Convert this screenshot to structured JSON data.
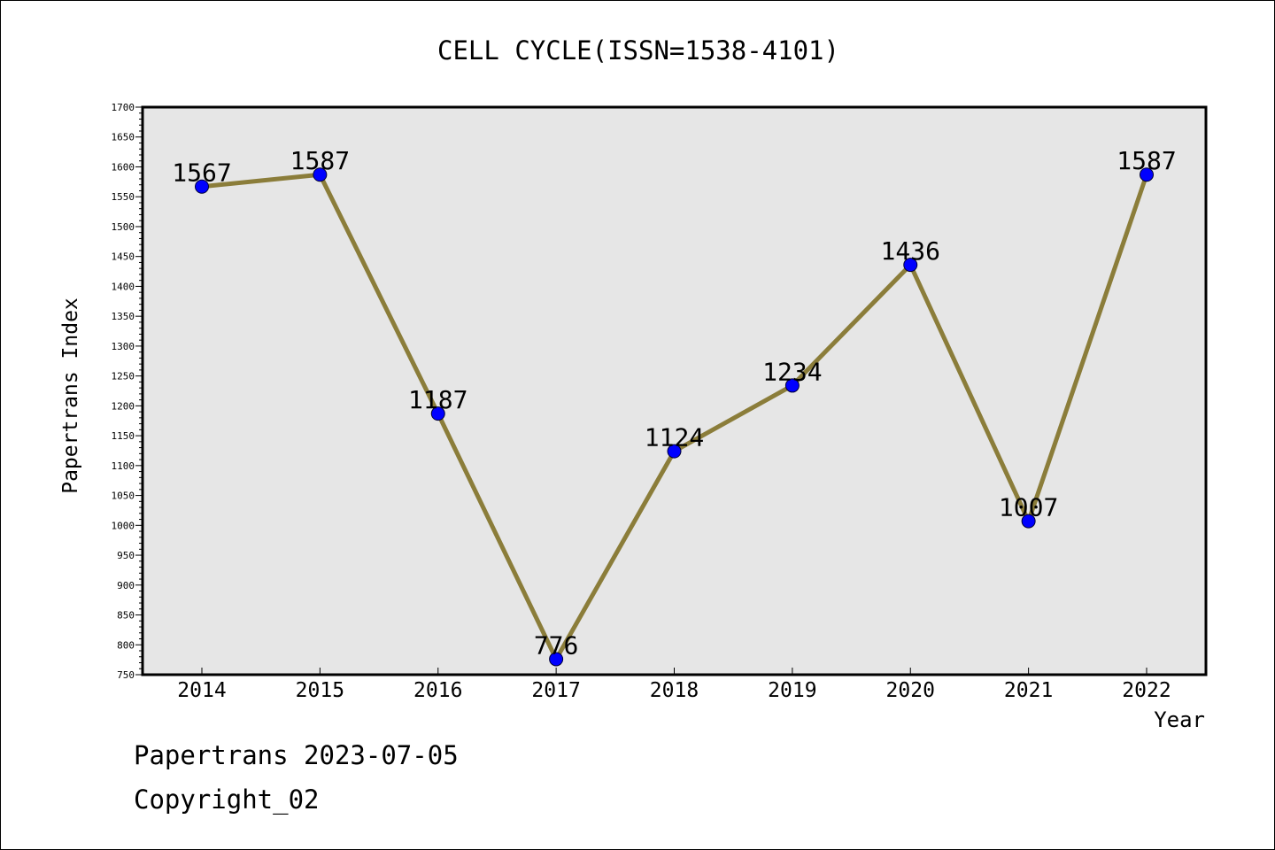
{
  "chart_data": {
    "type": "line",
    "title": "CELL CYCLE(ISSN=1538-4101)",
    "xlabel": "Year",
    "ylabel": "Papertrans Index",
    "categories": [
      "2014",
      "2015",
      "2016",
      "2017",
      "2018",
      "2019",
      "2020",
      "2021",
      "2022"
    ],
    "series": [
      {
        "values": [
          1567,
          1587,
          1187,
          776,
          1124,
          1234,
          1436,
          1007,
          1587
        ]
      }
    ],
    "data_labels": [
      "1567",
      "1587",
      "1187",
      "776",
      "1124",
      "1234",
      "1436",
      "1007",
      "1587"
    ],
    "ylim": [
      750,
      1700
    ],
    "y_ticks": [
      "750",
      "800",
      "850",
      "900",
      "950",
      "1000",
      "1050",
      "1100",
      "1150",
      "1200",
      "1250",
      "1300",
      "1350",
      "1400",
      "1450",
      "1500",
      "1550",
      "1600",
      "1650",
      "1700"
    ],
    "grid": false,
    "legend": "none",
    "colors": {
      "line": "#8b7d3a",
      "marker": "#0000ff",
      "plot_background": "#e6e6e6"
    }
  },
  "footer": {
    "date_line": "Papertrans 2023-07-05",
    "copyright_line": "Copyright_02"
  }
}
